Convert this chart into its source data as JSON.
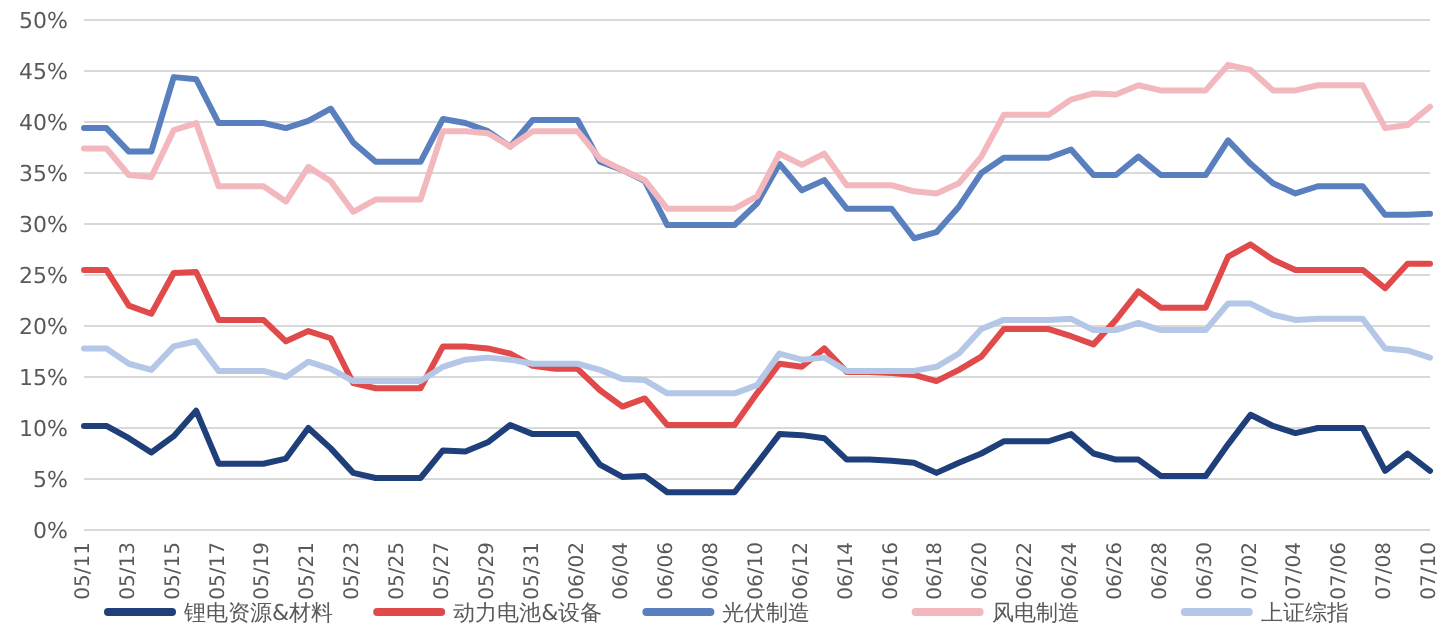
{
  "chart_data": {
    "type": "line",
    "categories": [
      "05/11",
      null,
      "05/13",
      null,
      "05/15",
      null,
      "05/17",
      null,
      "05/19",
      null,
      "05/21",
      null,
      "05/23",
      null,
      "05/25",
      null,
      "05/27",
      null,
      "05/29",
      null,
      "05/31",
      null,
      "06/02",
      null,
      "06/04",
      null,
      "06/06",
      null,
      "06/08",
      null,
      "06/10",
      null,
      "06/12",
      null,
      "06/14",
      null,
      "06/16",
      null,
      "06/18",
      null,
      "06/20",
      null,
      "06/22",
      null,
      "06/24",
      null,
      "06/26",
      null,
      "06/28",
      null,
      "06/30",
      null,
      "07/02",
      null,
      "07/04",
      null,
      "07/06",
      null,
      "07/08",
      null,
      "07/10"
    ],
    "ylim": [
      0,
      50
    ],
    "yticks": [
      {
        "value": 0,
        "label": "0%"
      },
      {
        "value": 5,
        "label": "5%"
      },
      {
        "value": 10,
        "label": "10%"
      },
      {
        "value": 15,
        "label": "15%"
      },
      {
        "value": 20,
        "label": "20%"
      },
      {
        "value": 25,
        "label": "25%"
      },
      {
        "value": 30,
        "label": "30%"
      },
      {
        "value": 35,
        "label": "35%"
      },
      {
        "value": 40,
        "label": "40%"
      },
      {
        "value": 45,
        "label": "45%"
      },
      {
        "value": 50,
        "label": "50%"
      }
    ],
    "grid": "y",
    "legend": "bottom",
    "marker": "none",
    "line_style": "solid",
    "series": [
      {
        "name": "锂电资源&材料",
        "color": "#1f3f7a",
        "values": [
          10.2,
          10.2,
          9,
          7.6,
          9.2,
          11.7,
          6.5,
          6.5,
          6.5,
          7,
          10,
          8,
          5.6,
          5.1,
          5.1,
          5.1,
          7.8,
          7.7,
          8.6,
          10.3,
          9.4,
          9.4,
          9.4,
          6.4,
          5.2,
          5.3,
          3.7,
          3.7,
          3.7,
          3.7,
          6.5,
          9.4,
          9.3,
          9,
          6.9,
          6.9,
          6.8,
          6.6,
          5.6,
          6.6,
          7.5,
          8.7,
          8.7,
          8.7,
          9.4,
          7.5,
          6.9,
          6.9,
          5.3,
          5.3,
          5.3,
          8.4,
          11.3,
          10.2,
          9.5,
          10,
          10,
          10,
          5.8,
          7.5,
          5.8
        ]
      },
      {
        "name": "动力电池&设备",
        "color": "#e04a4a",
        "values": [
          25.5,
          25.5,
          22,
          21.2,
          25.2,
          25.3,
          20.6,
          20.6,
          20.6,
          18.5,
          19.5,
          18.8,
          14.4,
          13.9,
          13.9,
          13.9,
          18,
          18,
          17.8,
          17.3,
          16.1,
          15.8,
          15.8,
          13.7,
          12.1,
          12.9,
          10.3,
          10.3,
          10.3,
          10.3,
          13.4,
          16.3,
          16,
          17.8,
          15.5,
          15.5,
          15.4,
          15.2,
          14.6,
          15.7,
          17,
          19.7,
          19.7,
          19.7,
          19,
          18.2,
          20.6,
          23.4,
          21.8,
          21.8,
          21.8,
          26.8,
          28,
          26.5,
          25.5,
          25.5,
          25.5,
          25.5,
          23.7,
          26.1,
          26.1
        ]
      },
      {
        "name": "光伏制造",
        "color": "#5a7fbf",
        "values": [
          39.4,
          39.4,
          37.1,
          37.1,
          44.4,
          44.2,
          39.9,
          39.9,
          39.9,
          39.4,
          40.1,
          41.3,
          38,
          36.1,
          36.1,
          36.1,
          40.3,
          39.9,
          39.1,
          37.6,
          40.2,
          40.2,
          40.2,
          36.1,
          35.3,
          34.2,
          29.9,
          29.9,
          29.9,
          29.9,
          32,
          35.9,
          33.3,
          34.3,
          31.5,
          31.5,
          31.5,
          28.6,
          29.2,
          31.7,
          35,
          36.5,
          36.5,
          36.5,
          37.3,
          34.8,
          34.8,
          36.6,
          34.8,
          34.8,
          34.8,
          38.2,
          35.9,
          34,
          33,
          33.7,
          33.7,
          33.7,
          30.9,
          30.9,
          31
        ]
      },
      {
        "name": "风电制造",
        "color": "#f2b8bd",
        "values": [
          37.4,
          37.4,
          34.8,
          34.6,
          39.2,
          39.9,
          33.7,
          33.7,
          33.7,
          32.2,
          35.6,
          34.2,
          31.2,
          32.4,
          32.4,
          32.4,
          39.1,
          39.1,
          38.9,
          37.6,
          39.1,
          39.1,
          39.1,
          36.4,
          35.3,
          34.3,
          31.5,
          31.5,
          31.5,
          31.5,
          32.7,
          36.9,
          35.8,
          36.9,
          33.8,
          33.8,
          33.8,
          33.2,
          33,
          34,
          36.6,
          40.7,
          40.7,
          40.7,
          42.2,
          42.8,
          42.7,
          43.6,
          43.1,
          43.1,
          43.1,
          45.6,
          45.1,
          43.1,
          43.1,
          43.6,
          43.6,
          43.6,
          39.4,
          39.7,
          41.5
        ]
      },
      {
        "name": "上证综指",
        "color": "#b4c7e7",
        "values": [
          17.8,
          17.8,
          16.3,
          15.7,
          18,
          18.5,
          15.6,
          15.6,
          15.6,
          15,
          16.5,
          15.8,
          14.6,
          14.6,
          14.6,
          14.6,
          16,
          16.7,
          16.9,
          16.7,
          16.3,
          16.3,
          16.3,
          15.7,
          14.8,
          14.7,
          13.4,
          13.4,
          13.4,
          13.4,
          14.2,
          17.3,
          16.7,
          16.9,
          15.6,
          15.6,
          15.6,
          15.6,
          16,
          17.3,
          19.7,
          20.6,
          20.6,
          20.6,
          20.7,
          19.6,
          19.6,
          20.3,
          19.6,
          19.6,
          19.6,
          22.2,
          22.2,
          21.1,
          20.6,
          20.7,
          20.7,
          20.7,
          17.8,
          17.6,
          16.9
        ]
      }
    ]
  }
}
